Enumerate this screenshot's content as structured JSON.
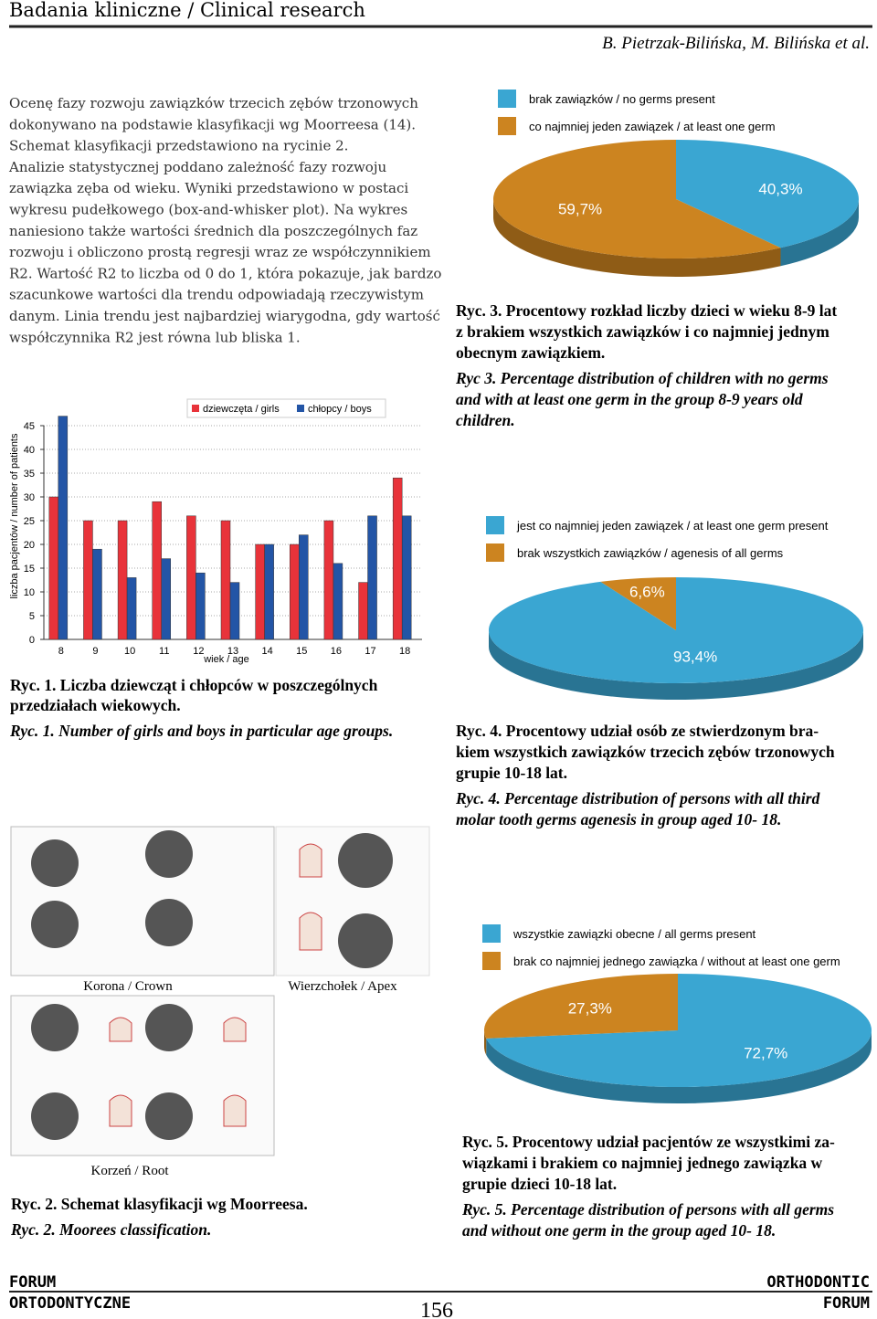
{
  "header": {
    "title": "Badania kliniczne / Clinical research",
    "authors": "B. Pietrzak-Bilińska, M. Bilińska et al."
  },
  "text": {
    "lines": [
      "Ocenę fazy rozwoju zawiązków trzecich zębów trzonowych",
      "dokonywano na podstawie klasyfikacji wg Moorreesa (14).",
      "Schemat klasyfikacji przedstawiono na rycinie 2.",
      "Analizie statystycznej poddano zależność fazy rozwoju",
      "zawiązka zęba od wieku. Wyniki przedstawiono w postaci",
      "wykresu pudełkowego (box-and-whisker plot). Na wykres",
      "naniesiono także wartości średnich dla poszczególnych faz",
      "rozwoju i obliczono prostą regresji wraz ze współczynnikiem",
      "R2. Wartość R2 to liczba od 0 do 1, która pokazuje, jak bardzo",
      "szacunkowe wartości dla trendu odpowiadają rzeczywistym",
      "danym. Linia trendu jest najbardziej wiarygodna, gdy wartość",
      "współczynnika R2 jest równa lub bliska 1."
    ]
  },
  "chart_data": [
    {
      "type": "bar",
      "x_label": "wiek / age",
      "y_label": "liczba pacjentów / number of patients",
      "categories": [
        "8",
        "9",
        "10",
        "11",
        "12",
        "13",
        "14",
        "15",
        "16",
        "17",
        "18"
      ],
      "series": [
        {
          "name": "dziewczęta / girls",
          "color": "#e8333a",
          "values": [
            30,
            25,
            25,
            29,
            26,
            25,
            20,
            20,
            25,
            12,
            34
          ]
        },
        {
          "name": "chłopcy / boys",
          "color": "#2355a6",
          "values": [
            47,
            19,
            13,
            17,
            14,
            12,
            20,
            22,
            16,
            26,
            26
          ]
        }
      ],
      "ylim": [
        0,
        45
      ],
      "yticks": [
        0,
        5,
        10,
        15,
        20,
        25,
        30,
        35,
        40,
        45
      ],
      "grid": true,
      "caption": [
        "Ryc. 1. Liczba dziewcząt i chłopców w poszczególnych",
        "przedziałach wiekowych."
      ],
      "caption_en": "Ryc. 1. Number of girls and boys in particular age groups."
    },
    {
      "type": "pie",
      "categories": [
        "brak zawiązków / no germs present",
        "co najmniej jeden zawiązek / at least one germ"
      ],
      "values": [
        40.3,
        59.7
      ],
      "value_labels": [
        "40,3%",
        "59,7%"
      ],
      "colors": [
        "#3aa6d2",
        "#cc8420"
      ],
      "caption": [
        "Ryc. 3. Procentowy rozkład liczby dzieci w wieku 8-9 lat",
        "z brakiem wszystkich zawiązków i co najmniej jednym",
        "obecnym zawiązkiem."
      ],
      "caption_en": [
        "Ryc 3. Percentage distribution of children with no germs",
        "and with at least one germ in the group 8-9 years old",
        "children."
      ]
    },
    {
      "type": "pie",
      "categories": [
        "jest co najmniej jeden zawiązek / at least one germ present",
        "brak wszystkich zawiązków / agenesis of all germs"
      ],
      "values": [
        93.4,
        6.6
      ],
      "value_labels": [
        "93,4%",
        "6,6%"
      ],
      "colors": [
        "#3aa6d2",
        "#cc8420"
      ],
      "caption": [
        "Ryc. 4. Procentowy udział osób ze stwierdzonym bra-",
        "kiem wszystkich zawiązków trzecich zębów trzonowych",
        "grupie 10-18 lat."
      ],
      "caption_en": [
        "Ryc. 4. Percentage distribution of persons with all third",
        "molar tooth germs agenesis in group aged 10- 18."
      ]
    },
    {
      "type": "pie",
      "categories": [
        "wszystkie zawiązki obecne / all germs present",
        "brak co najmniej jednego zawiązka / without at least one germ"
      ],
      "values": [
        72.7,
        27.3
      ],
      "value_labels": [
        "72,7%",
        "27,3%"
      ],
      "colors": [
        "#3aa6d2",
        "#cc8420"
      ],
      "caption": [
        "Ryc. 5. Procentowy udział pacjentów ze wszystkimi za-",
        "wiązkami i brakiem co najmniej jednego zawiązka w",
        "grupie dzieci 10-18 lat."
      ],
      "caption_en": [
        "Ryc. 5. Percentage distribution of persons with all germs",
        "and without one germ in the group aged 10- 18."
      ]
    }
  ],
  "figure2": {
    "crown": "Korona / Crown",
    "apex": "Wierzchołek / Apex",
    "root": "Korzeń / Root",
    "caption": "Ryc. 2. Schemat klasyfikacji wg Moorreesa.",
    "caption_en": "Ryc. 2. Moorees classification."
  },
  "footer": {
    "left": [
      "FORUM",
      "ORTODONTYCZNE"
    ],
    "page": "156",
    "right": [
      "ORTHODONTIC",
      "FORUM"
    ]
  }
}
